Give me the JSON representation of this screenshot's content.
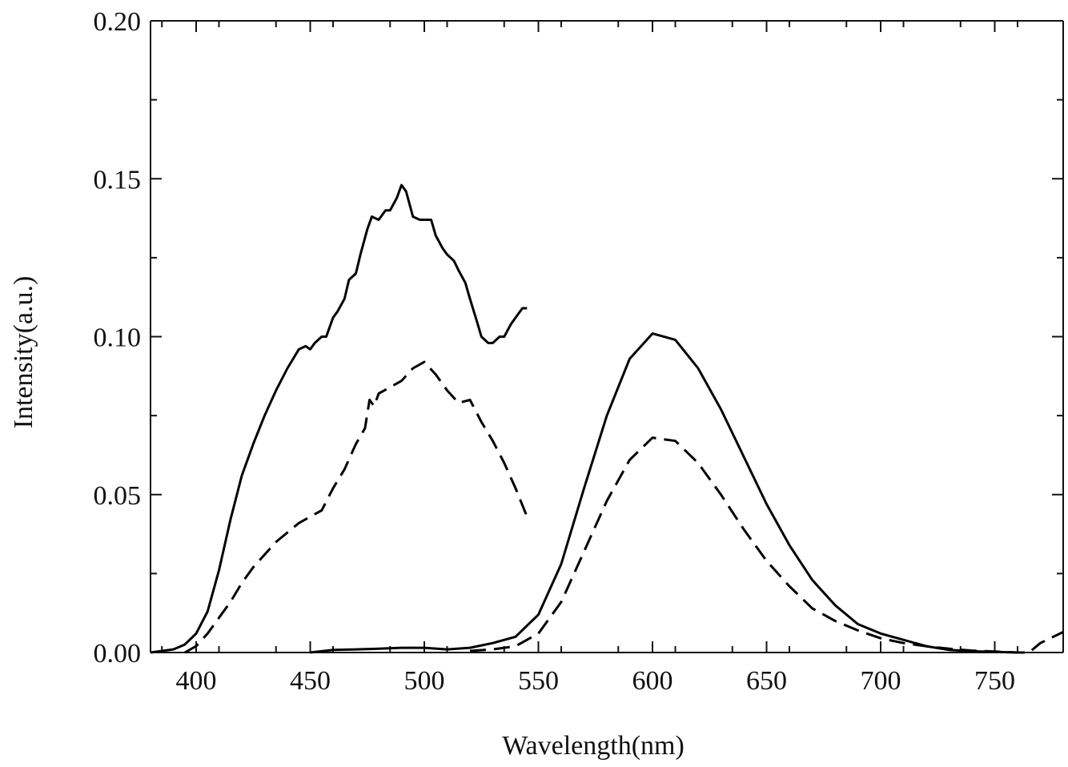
{
  "chart_data": {
    "type": "line",
    "title": "",
    "xlabel": "Wavelength(nm)",
    "ylabel": "Intensity(a.u.)",
    "xlim": [
      380,
      780
    ],
    "ylim": [
      0,
      0.2
    ],
    "xticks": [
      400,
      450,
      500,
      550,
      600,
      650,
      700,
      750
    ],
    "xtick_labels": [
      "400",
      "450",
      "500",
      "550",
      "600",
      "650",
      "700",
      "750"
    ],
    "yticks": [
      0,
      0.05,
      0.1,
      0.15,
      0.2
    ],
    "ytick_labels": [
      "0.00",
      "0.05",
      "0.10",
      "0.15",
      "0.20"
    ],
    "grid": false,
    "legend": "none",
    "series": [
      {
        "style": "solid",
        "x": [
          380,
          385,
          390,
          395,
          400,
          405,
          410,
          415,
          420,
          425,
          430,
          435,
          440,
          445,
          448,
          450,
          452,
          455,
          457,
          460,
          462,
          465,
          467,
          470,
          472,
          475,
          477,
          480,
          483,
          485,
          488,
          490,
          492,
          495,
          498,
          500,
          503,
          505,
          508,
          510,
          513,
          515,
          518,
          520,
          523,
          525,
          528,
          530,
          533,
          535,
          538,
          540,
          543,
          545
        ],
        "y": [
          0.0,
          0.0005,
          0.001,
          0.0025,
          0.006,
          0.013,
          0.026,
          0.042,
          0.056,
          0.066,
          0.075,
          0.083,
          0.09,
          0.096,
          0.097,
          0.096,
          0.098,
          0.1,
          0.1,
          0.106,
          0.108,
          0.112,
          0.118,
          0.12,
          0.126,
          0.134,
          0.138,
          0.137,
          0.14,
          0.14,
          0.144,
          0.148,
          0.146,
          0.138,
          0.137,
          0.137,
          0.137,
          0.132,
          0.128,
          0.126,
          0.124,
          0.121,
          0.117,
          0.112,
          0.105,
          0.1,
          0.098,
          0.098,
          0.1,
          0.1,
          0.104,
          0.106,
          0.109,
          0.109
        ]
      },
      {
        "style": "dashed",
        "x": [
          395,
          400,
          405,
          410,
          415,
          420,
          425,
          430,
          435,
          440,
          445,
          450,
          455,
          460,
          465,
          470,
          474,
          476,
          478,
          480,
          485,
          490,
          495,
          500,
          505,
          510,
          515,
          520,
          525,
          530,
          535,
          540,
          545
        ],
        "y": [
          0.0,
          0.002,
          0.006,
          0.011,
          0.016,
          0.022,
          0.027,
          0.031,
          0.035,
          0.038,
          0.041,
          0.043,
          0.045,
          0.052,
          0.058,
          0.066,
          0.071,
          0.08,
          0.078,
          0.082,
          0.084,
          0.086,
          0.09,
          0.092,
          0.088,
          0.083,
          0.079,
          0.08,
          0.073,
          0.067,
          0.06,
          0.052,
          0.043
        ]
      },
      {
        "style": "solid",
        "x": [
          450,
          460,
          470,
          480,
          490,
          500,
          510,
          520,
          530,
          540,
          550,
          560,
          570,
          580,
          590,
          600,
          610,
          620,
          630,
          640,
          650,
          660,
          670,
          680,
          690,
          700,
          710,
          720,
          730,
          740,
          750,
          760
        ],
        "y": [
          0.0,
          0.0008,
          0.001,
          0.0012,
          0.0015,
          0.0015,
          0.001,
          0.0015,
          0.003,
          0.005,
          0.012,
          0.028,
          0.052,
          0.075,
          0.093,
          0.101,
          0.099,
          0.09,
          0.077,
          0.062,
          0.047,
          0.034,
          0.023,
          0.015,
          0.009,
          0.006,
          0.004,
          0.002,
          0.0008,
          0.0004,
          0.0002,
          0.0
        ]
      },
      {
        "style": "dashed",
        "x": [
          520,
          530,
          540,
          550,
          560,
          570,
          580,
          590,
          600,
          610,
          620,
          630,
          640,
          650,
          660,
          670,
          680,
          690,
          700,
          710,
          720,
          730,
          740,
          750,
          760,
          765,
          770,
          780
        ],
        "y": [
          0.0005,
          0.001,
          0.002,
          0.006,
          0.016,
          0.032,
          0.048,
          0.061,
          0.068,
          0.067,
          0.06,
          0.05,
          0.039,
          0.029,
          0.021,
          0.014,
          0.01,
          0.007,
          0.0045,
          0.003,
          0.002,
          0.0012,
          0.0006,
          0.0003,
          0.0,
          0.0,
          0.003,
          0.0065
        ]
      }
    ]
  }
}
